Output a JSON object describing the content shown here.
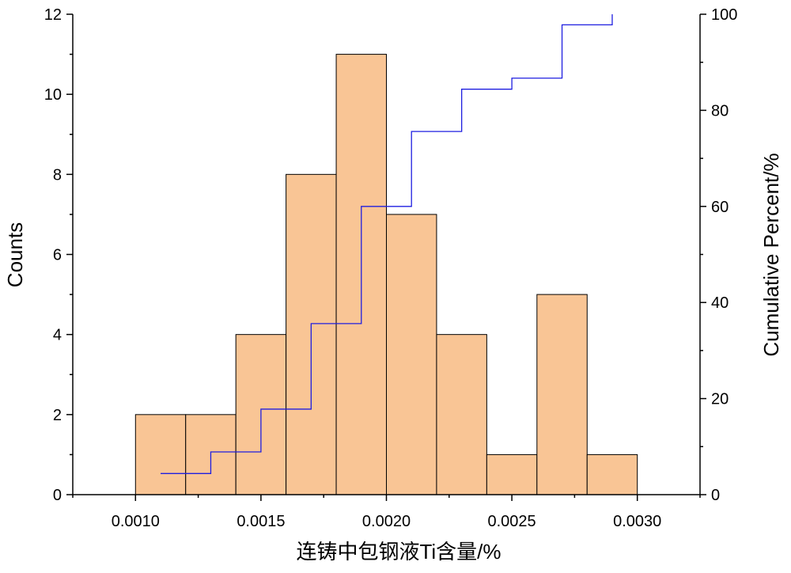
{
  "chart_data": {
    "type": "bar",
    "bin_edges": [
      0.001,
      0.0012,
      0.0014,
      0.0016,
      0.0018,
      0.002,
      0.0022,
      0.0024,
      0.0026,
      0.0028,
      0.003
    ],
    "counts": [
      2,
      2,
      4,
      8,
      11,
      7,
      4,
      1,
      5,
      1
    ],
    "cumulative_percent": {
      "x": [
        0.0011,
        0.0013,
        0.0015,
        0.0017,
        0.0019,
        0.0021,
        0.0023,
        0.0025,
        0.0027
      ],
      "values": [
        4.4,
        8.9,
        17.8,
        35.6,
        60.0,
        75.6,
        84.4,
        86.7,
        97.8
      ],
      "final_value": 100
    },
    "xlabel": "连铸中包钢液Ti含量/%",
    "ylabel": "Counts",
    "y2label": "Cumulative Percent/%",
    "xlim": [
      0.00075,
      0.00325
    ],
    "ylim": [
      0,
      12
    ],
    "y2lim": [
      0,
      100
    ],
    "x_ticks": [
      "0.0010",
      "0.0015",
      "0.0020",
      "0.0025",
      "0.0030"
    ],
    "x_tick_values": [
      0.001,
      0.0015,
      0.002,
      0.0025,
      0.003
    ],
    "y_ticks": [
      0,
      2,
      4,
      6,
      8,
      10,
      12
    ],
    "y2_ticks": [
      0,
      20,
      40,
      60,
      80,
      100
    ],
    "grid": false,
    "colors": {
      "bar_fill": "#F9C595",
      "bar_edge": "#000000",
      "line": "#1F1FE0"
    }
  }
}
